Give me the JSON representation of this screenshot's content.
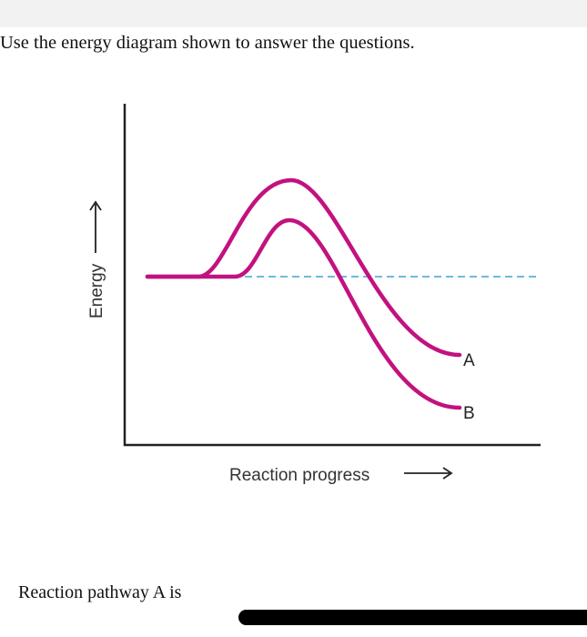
{
  "page": {
    "instruction": "Use the energy diagram shown to answer the questions.",
    "question": "Reaction pathway A is"
  },
  "diagram": {
    "y_axis_label": "Energy",
    "x_axis_label": "Reaction progress",
    "curves": [
      {
        "name": "A",
        "color": "#c2127f"
      },
      {
        "name": "B",
        "color": "#c2127f"
      }
    ],
    "reference_line_color": "#3fa2d4",
    "axis_color": "#222222"
  }
}
